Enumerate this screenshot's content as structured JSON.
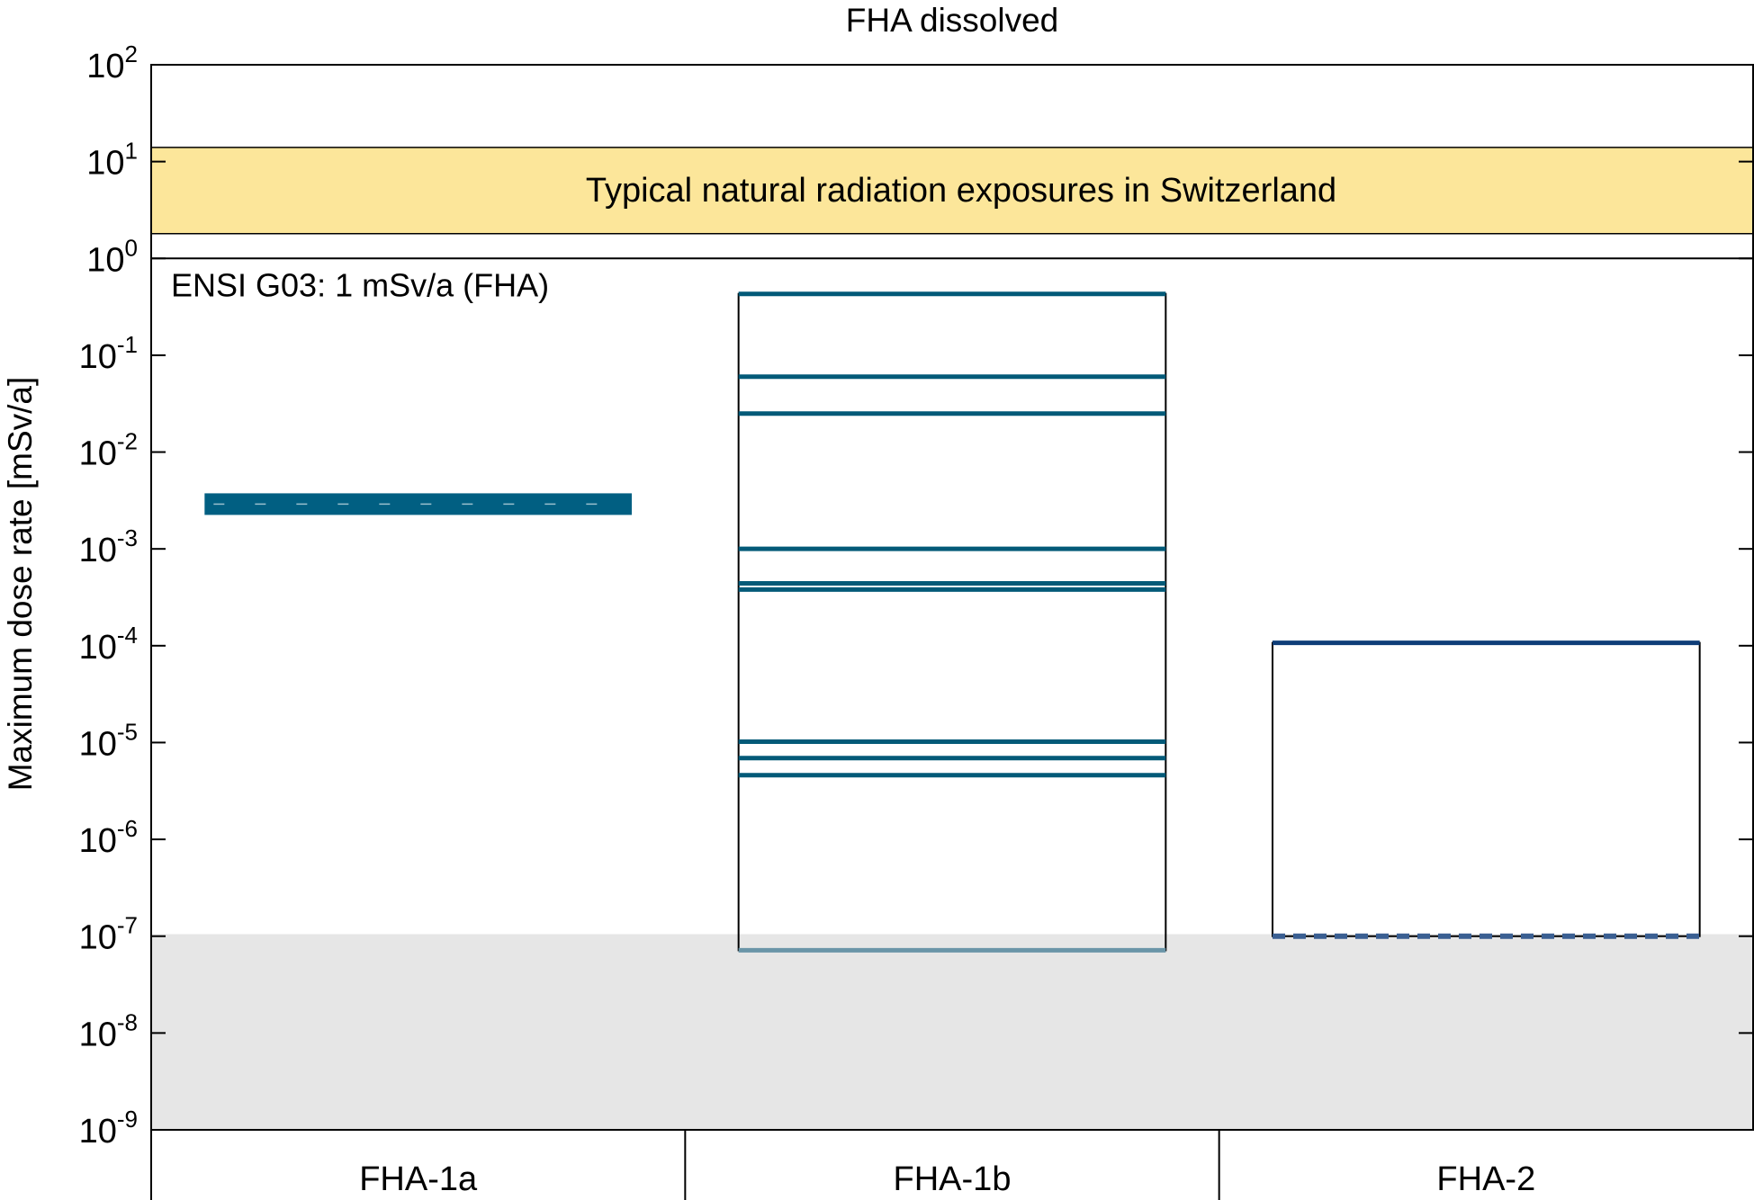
{
  "chart_data": {
    "type": "bar",
    "title": "FHA dissolved",
    "ylabel": "Maximum dose rate [mSv/a]",
    "xlabel": "",
    "y_scale": "log",
    "ylim": [
      1e-09,
      100
    ],
    "y_ticks": [
      {
        "base": "10",
        "exp": "2",
        "value": 100
      },
      {
        "base": "10",
        "exp": "1",
        "value": 10
      },
      {
        "base": "10",
        "exp": "0",
        "value": 1
      },
      {
        "base": "10",
        "exp": "-1",
        "value": 0.1
      },
      {
        "base": "10",
        "exp": "-2",
        "value": 0.01
      },
      {
        "base": "10",
        "exp": "-3",
        "value": 0.001
      },
      {
        "base": "10",
        "exp": "-4",
        "value": 0.0001
      },
      {
        "base": "10",
        "exp": "-5",
        "value": 1e-05
      },
      {
        "base": "10",
        "exp": "-6",
        "value": 1e-06
      },
      {
        "base": "10",
        "exp": "-7",
        "value": 1e-07
      },
      {
        "base": "10",
        "exp": "-8",
        "value": 1e-08
      },
      {
        "base": "10",
        "exp": "-9",
        "value": 1e-09
      }
    ],
    "categories": [
      "FHA-1a",
      "FHA-1b",
      "FHA-2"
    ],
    "grid": false,
    "natural_band": {
      "label": "Typical natural radiation exposures in Switzerland",
      "low": 1.8,
      "high": 14,
      "color": "#fce69a"
    },
    "limit_line": {
      "label": "ENSI G03: 1 mSv/a (FHA)",
      "value": 1
    },
    "grey_band": {
      "low": 1e-09,
      "high": 1.05e-07,
      "color": "#e6e6e6"
    },
    "bars": [
      {
        "category": "FHA-1a",
        "box": null,
        "lines": [
          {
            "value": 0.0029,
            "style": "thick",
            "color": "#015f82"
          }
        ]
      },
      {
        "category": "FHA-1b",
        "box": [
          7.15e-08,
          0.43
        ],
        "lines": [
          {
            "value": 0.43,
            "style": "solid",
            "color": "#035a78"
          },
          {
            "value": 0.06,
            "style": "solid",
            "color": "#035a78"
          },
          {
            "value": 0.025,
            "style": "solid",
            "color": "#035a78"
          },
          {
            "value": 0.001,
            "style": "solid",
            "color": "#035a78"
          },
          {
            "value": 0.00044,
            "style": "solid",
            "color": "#035a78"
          },
          {
            "value": 0.00038,
            "style": "solid",
            "color": "#035a78"
          },
          {
            "value": 1.02e-05,
            "style": "solid",
            "color": "#035a78"
          },
          {
            "value": 6.9e-06,
            "style": "solid",
            "color": "#035a78"
          },
          {
            "value": 4.6e-06,
            "style": "solid",
            "color": "#035a78"
          },
          {
            "value": 7.15e-08,
            "style": "solid",
            "color": "#6a95a8"
          }
        ]
      },
      {
        "category": "FHA-2",
        "box": [
          1e-07,
          0.000107
        ],
        "lines": [
          {
            "value": 0.000107,
            "style": "solid",
            "color": "#0e3d78"
          },
          {
            "value": 1e-07,
            "style": "dashed",
            "color": "#3a5f92"
          }
        ]
      }
    ],
    "colors": {
      "band": "#fce69a",
      "grey": "#e6e6e6",
      "series": "#035a78"
    }
  }
}
